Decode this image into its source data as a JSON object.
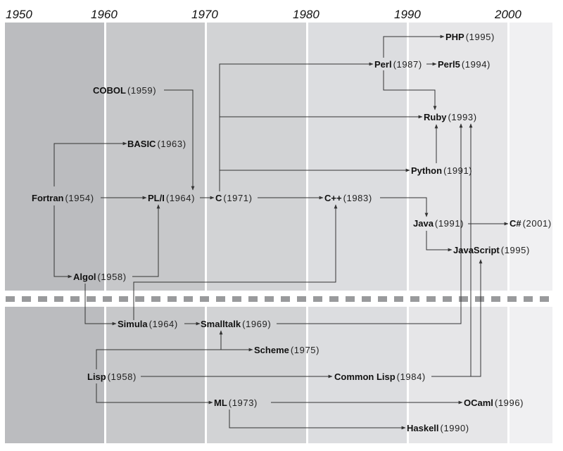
{
  "decades": [
    "1950",
    "1960",
    "1970",
    "1980",
    "1990",
    "2000"
  ],
  "colors": {
    "bands": [
      "#bbbcbf",
      "#c7c8ca",
      "#d2d3d5",
      "#dcdde0",
      "#e6e6e8",
      "#f0f0f2"
    ],
    "separator": "#999a9c",
    "line": "#333333"
  },
  "nodes": {
    "php": {
      "name": "PHP",
      "year": "(1995)"
    },
    "perl": {
      "name": "Perl",
      "year": "(1987)"
    },
    "perl5": {
      "name": "Perl5",
      "year": "(1994)"
    },
    "ruby": {
      "name": "Ruby",
      "year": "(1993)"
    },
    "python": {
      "name": "Python",
      "year": "(1991)"
    },
    "java": {
      "name": "Java",
      "year": "(1991)"
    },
    "csharp": {
      "name": "C#",
      "year": "(2001)"
    },
    "javascript": {
      "name": "JavaScript",
      "year": "(1995)"
    },
    "cobol": {
      "name": "COBOL",
      "year": "(1959)"
    },
    "basic": {
      "name": "BASIC",
      "year": "(1963)"
    },
    "fortran": {
      "name": "Fortran",
      "year": "(1954)"
    },
    "pli": {
      "name": "PL/I",
      "year": "(1964)"
    },
    "c": {
      "name": "C",
      "year": "(1971)"
    },
    "cpp": {
      "name": "C++",
      "year": "(1983)"
    },
    "algol": {
      "name": "Algol",
      "year": "(1958)"
    },
    "simula": {
      "name": "Simula",
      "year": "(1964)"
    },
    "smalltalk": {
      "name": "Smalltalk",
      "year": "(1969)"
    },
    "scheme": {
      "name": "Scheme",
      "year": "(1975)"
    },
    "lisp": {
      "name": "Lisp",
      "year": "(1958)"
    },
    "commonlisp": {
      "name": "Common Lisp",
      "year": "(1984)"
    },
    "ml": {
      "name": "ML",
      "year": "(1973)"
    },
    "ocaml": {
      "name": "OCaml",
      "year": "(1996)"
    },
    "haskell": {
      "name": "Haskell",
      "year": "(1990)"
    }
  },
  "edges": [
    [
      "fortran",
      "basic"
    ],
    [
      "fortran",
      "pli"
    ],
    [
      "fortran",
      "algol"
    ],
    [
      "cobol",
      "pli"
    ],
    [
      "algol",
      "pli"
    ],
    [
      "pli",
      "c"
    ],
    [
      "c",
      "perl"
    ],
    [
      "c",
      "ruby"
    ],
    [
      "c",
      "python"
    ],
    [
      "c",
      "cpp"
    ],
    [
      "simula",
      "cpp"
    ],
    [
      "algol",
      "simula"
    ],
    [
      "simula",
      "smalltalk"
    ],
    [
      "smalltalk",
      "ruby"
    ],
    [
      "commonlisp",
      "ruby"
    ],
    [
      "commonlisp",
      "javascript"
    ],
    [
      "lisp",
      "smalltalk"
    ],
    [
      "lisp",
      "scheme"
    ],
    [
      "lisp",
      "commonlisp"
    ],
    [
      "lisp",
      "ml"
    ],
    [
      "ml",
      "ocaml"
    ],
    [
      "ml",
      "haskell"
    ],
    [
      "perl",
      "php"
    ],
    [
      "perl",
      "perl5"
    ],
    [
      "perl",
      "ruby"
    ],
    [
      "python",
      "ruby"
    ],
    [
      "cpp",
      "java"
    ],
    [
      "java",
      "csharp"
    ],
    [
      "java",
      "javascript"
    ]
  ]
}
